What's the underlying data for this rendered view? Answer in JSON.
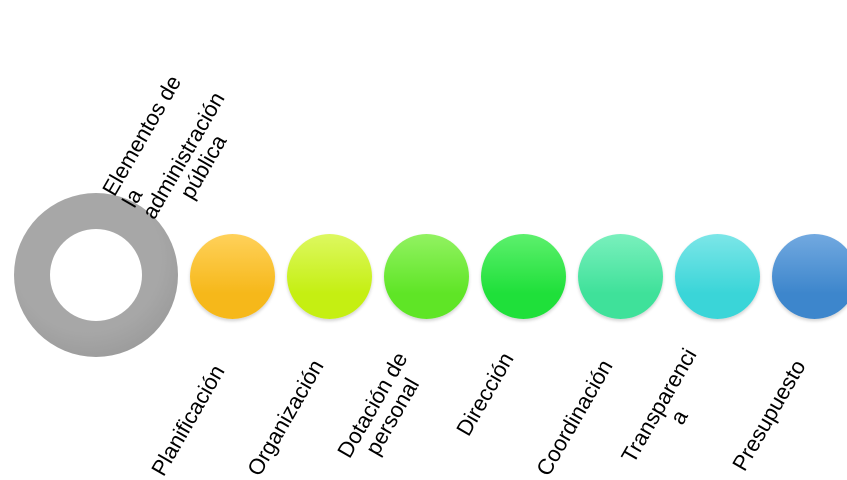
{
  "center": {
    "lines": [
      "Elementos de",
      "la",
      "administración",
      "pública"
    ],
    "ring_color": "#a7a7a7",
    "ring_color_dark": "#8f8f8f"
  },
  "items": [
    {
      "lines": [
        "Planificación"
      ],
      "color": "#f6b81a",
      "color_light": "#ffd15a"
    },
    {
      "lines": [
        "Organización"
      ],
      "color": "#c5ef12",
      "color_light": "#ddf860"
    },
    {
      "lines": [
        "Dotación de",
        "personal"
      ],
      "color": "#5fe526",
      "color_light": "#92f262"
    },
    {
      "lines": [
        "Dirección"
      ],
      "color": "#1fe03a",
      "color_light": "#5df06d"
    },
    {
      "lines": [
        "Coordinación"
      ],
      "color": "#3fe19a",
      "color_light": "#7af0bd"
    },
    {
      "lines": [
        "Transparenci",
        "a"
      ],
      "color": "#3ad5d8",
      "color_light": "#7ce6e8"
    },
    {
      "lines": [
        "Presupuesto"
      ],
      "color": "#3d86cc",
      "color_light": "#72a9e0"
    }
  ]
}
